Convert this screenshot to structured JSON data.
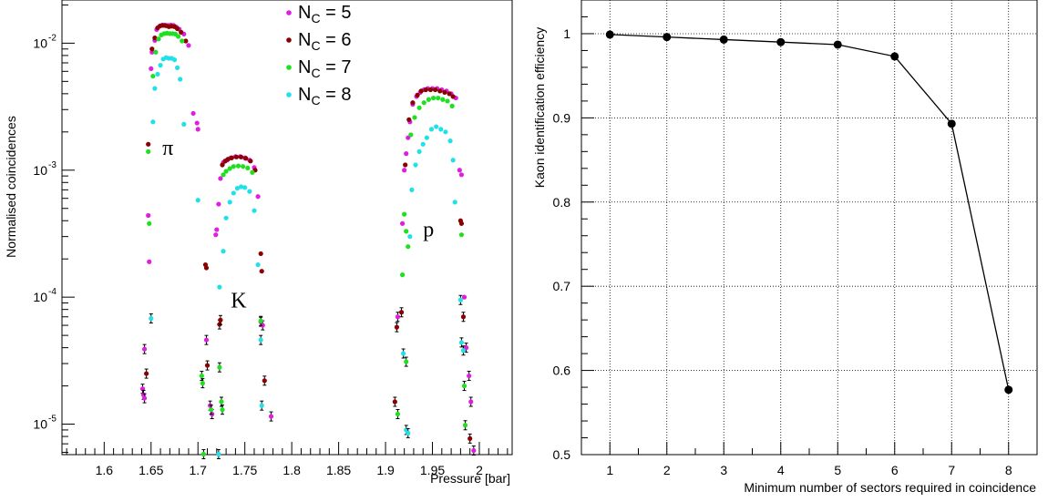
{
  "chart_data": [
    {
      "type": "scatter",
      "title": "",
      "xlabel": "Pressure [bar]",
      "ylabel": "Normalised coincidences",
      "xlim": [
        1.555,
        2.035
      ],
      "ylim_log10": [
        -5.24,
        -1.66
      ],
      "y_scale": "log",
      "grid": false,
      "legend_position": "top-center",
      "x_tick_labels": [
        "1.6",
        "1.65",
        "1.7",
        "1.75",
        "1.8",
        "1.85",
        "1.9",
        "1.95",
        "2"
      ],
      "x_ticks": [
        1.6,
        1.65,
        1.7,
        1.75,
        1.8,
        1.85,
        1.9,
        1.95,
        2.0
      ],
      "y_tick_bases": [
        "10",
        "10",
        "10",
        "10"
      ],
      "y_tick_exponents": [
        "-2",
        "-3",
        "-4",
        "-5"
      ],
      "y_ticks_log10": [
        -2,
        -3,
        -4,
        -5
      ],
      "legend": [
        {
          "label_main": "N",
          "label_sub": "C",
          "label_rest": " = 5",
          "color": "#e01ee0"
        },
        {
          "label_main": "N",
          "label_sub": "C",
          "label_rest": " = 6",
          "color": "#8b0000"
        },
        {
          "label_main": "N",
          "label_sub": "C",
          "label_rest": " = 7",
          "color": "#1ee01e"
        },
        {
          "label_main": "N",
          "label_sub": "C",
          "label_rest": " = 8",
          "color": "#22e0e8"
        }
      ],
      "annotations": [
        {
          "text": "π",
          "x": 1.662,
          "y_log10": -2.88
        },
        {
          "text": "K",
          "x": 1.735,
          "y_log10": -4.08
        },
        {
          "text": "p",
          "x": 1.94,
          "y_log10": -3.52
        }
      ],
      "series": [
        {
          "name": "N_C = 5",
          "color": "#e01ee0",
          "points": [
            [
              1.641,
              1.9e-05
            ],
            [
              1.642,
              1.7e-05
            ],
            [
              1.643,
              1.6e-05
            ],
            [
              1.643,
              3.9e-05
            ],
            [
              1.647,
              0.00044
            ],
            [
              1.648,
              0.00019
            ],
            [
              1.65,
              0.0063
            ],
            [
              1.651,
              0.0085
            ],
            [
              1.654,
              0.0105
            ],
            [
              1.656,
              0.0128
            ],
            [
              1.659,
              0.0136
            ],
            [
              1.662,
              0.0139
            ],
            [
              1.665,
              0.0139
            ],
            [
              1.668,
              0.0138
            ],
            [
              1.671,
              0.0139
            ],
            [
              1.674,
              0.0138
            ],
            [
              1.677,
              0.0134
            ],
            [
              1.68,
              0.0129
            ],
            [
              1.685,
              0.0118
            ],
            [
              1.69,
              0.0096
            ],
            [
              1.695,
              0.0028
            ],
            [
              1.699,
              0.00235
            ],
            [
              1.7,
              0.0021
            ],
            [
              1.709,
              4.6e-05
            ],
            [
              1.713,
              1.4e-05
            ],
            [
              1.715,
              1.2e-05
            ],
            [
              1.719,
              0.00031
            ],
            [
              1.72,
              0.00034
            ],
            [
              1.722,
              0.00054
            ],
            [
              1.724,
              0.00086
            ],
            [
              1.727,
              0.00115
            ],
            [
              1.731,
              0.0012
            ],
            [
              1.735,
              0.00125
            ],
            [
              1.74,
              0.00128
            ],
            [
              1.745,
              0.00128
            ],
            [
              1.75,
              0.00125
            ],
            [
              1.755,
              0.0012
            ],
            [
              1.76,
              0.00105
            ],
            [
              1.764,
              0.00062
            ],
            [
              1.767,
              6.4e-05
            ],
            [
              1.769,
              6e-05
            ],
            [
              1.778,
              1.15e-05
            ],
            [
              1.779,
              5.6e-06
            ],
            [
              1.913,
              7e-05
            ],
            [
              1.918,
              0.00038
            ],
            [
              1.92,
              0.001
            ],
            [
              1.922,
              0.00135
            ],
            [
              1.924,
              0.0018
            ],
            [
              1.926,
              0.0024
            ],
            [
              1.929,
              0.0033
            ],
            [
              1.933,
              0.0038
            ],
            [
              1.937,
              0.0041
            ],
            [
              1.941,
              0.0043
            ],
            [
              1.945,
              0.0044
            ],
            [
              1.95,
              0.0044
            ],
            [
              1.955,
              0.0044
            ],
            [
              1.96,
              0.0043
            ],
            [
              1.965,
              0.0042
            ],
            [
              1.97,
              0.004
            ],
            [
              1.975,
              0.0037
            ],
            [
              1.979,
              0.001
            ],
            [
              1.981,
              0.00092
            ],
            [
              1.984,
              0.0001
            ],
            [
              1.986,
              4e-05
            ],
            [
              1.989,
              2.4e-05
            ],
            [
              1.991,
              1.5e-05
            ],
            [
              1.994,
              6.2e-06
            ]
          ]
        },
        {
          "name": "N_C = 6",
          "color": "#8b0000",
          "points": [
            [
              1.645,
              2.5e-05
            ],
            [
              1.647,
              0.0016
            ],
            [
              1.651,
              0.009
            ],
            [
              1.654,
              0.011
            ],
            [
              1.657,
              0.0132
            ],
            [
              1.66,
              0.0137
            ],
            [
              1.663,
              0.0138
            ],
            [
              1.666,
              0.0137
            ],
            [
              1.669,
              0.0135
            ],
            [
              1.672,
              0.0136
            ],
            [
              1.675,
              0.0135
            ],
            [
              1.678,
              0.013
            ],
            [
              1.682,
              0.0122
            ],
            [
              1.687,
              0.0104
            ],
            [
              1.708,
              0.00018
            ],
            [
              1.709,
              0.00017
            ],
            [
              1.71,
              2.9e-05
            ],
            [
              1.723,
              6.1e-05
            ],
            [
              1.724,
              6.6e-05
            ],
            [
              1.726,
              0.0011
            ],
            [
              1.729,
              0.00118
            ],
            [
              1.732,
              0.00122
            ],
            [
              1.736,
              0.00125
            ],
            [
              1.741,
              0.00127
            ],
            [
              1.746,
              0.00127
            ],
            [
              1.751,
              0.00124
            ],
            [
              1.756,
              0.00118
            ],
            [
              1.761,
              0.001
            ],
            [
              1.767,
              0.00022
            ],
            [
              1.768,
              0.00016
            ],
            [
              1.771,
              2.2e-05
            ],
            [
              1.912,
              5.8e-05
            ],
            [
              1.91,
              1.5e-05
            ],
            [
              1.917,
              7.6e-05
            ],
            [
              1.921,
              0.0011
            ],
            [
              1.925,
              0.0025
            ],
            [
              1.929,
              0.0034
            ],
            [
              1.934,
              0.0039
            ],
            [
              1.938,
              0.0042
            ],
            [
              1.943,
              0.0043
            ],
            [
              1.948,
              0.0043
            ],
            [
              1.953,
              0.0043
            ],
            [
              1.958,
              0.0042
            ],
            [
              1.963,
              0.0041
            ],
            [
              1.968,
              0.004
            ],
            [
              1.972,
              0.0038
            ],
            [
              1.98,
              0.0004
            ],
            [
              1.981,
              0.00038
            ],
            [
              1.983,
              7e-05
            ],
            [
              1.99,
              7.7e-06
            ],
            [
              1.995,
              5.4e-06
            ]
          ]
        },
        {
          "name": "N_C = 7",
          "color": "#1ee01e",
          "points": [
            [
              1.647,
              0.0014
            ],
            [
              1.648,
              0.00038
            ],
            [
              1.652,
              0.0055
            ],
            [
              1.655,
              0.0085
            ],
            [
              1.658,
              0.0108
            ],
            [
              1.661,
              0.0116
            ],
            [
              1.664,
              0.0119
            ],
            [
              1.667,
              0.012
            ],
            [
              1.67,
              0.0119
            ],
            [
              1.673,
              0.0119
            ],
            [
              1.676,
              0.0118
            ],
            [
              1.679,
              0.0113
            ],
            [
              1.683,
              0.0104
            ],
            [
              1.704,
              2.4e-05
            ],
            [
              1.705,
              2.1e-05
            ],
            [
              1.706,
              5.8e-06
            ],
            [
              1.714,
              1.3e-05
            ],
            [
              1.723,
              2.8e-05
            ],
            [
              1.725,
              1.5e-05
            ],
            [
              1.726,
              1.3e-05
            ],
            [
              1.727,
              0.00092
            ],
            [
              1.73,
              0.00098
            ],
            [
              1.734,
              0.00103
            ],
            [
              1.738,
              0.00107
            ],
            [
              1.743,
              0.00108
            ],
            [
              1.748,
              0.00107
            ],
            [
              1.753,
              0.00104
            ],
            [
              1.758,
              0.00096
            ],
            [
              1.767,
              6.5e-05
            ],
            [
              1.913,
              1.2e-05
            ],
            [
              1.918,
              0.00015
            ],
            [
              1.92,
              0.00045
            ],
            [
              1.922,
              0.00033
            ],
            [
              1.924,
              0.00025
            ],
            [
              1.922,
              3.1e-05
            ],
            [
              1.927,
              0.0019
            ],
            [
              1.931,
              0.0026
            ],
            [
              1.936,
              0.0031
            ],
            [
              1.941,
              0.0034
            ],
            [
              1.946,
              0.0036
            ],
            [
              1.951,
              0.0037
            ],
            [
              1.956,
              0.0037
            ],
            [
              1.961,
              0.0036
            ],
            [
              1.966,
              0.0035
            ],
            [
              1.971,
              0.0032
            ],
            [
              1.981,
              0.00031
            ],
            [
              1.984,
              2e-05
            ],
            [
              1.985,
              9.8e-06
            ]
          ]
        },
        {
          "name": "N_C = 8",
          "color": "#22e0e8",
          "points": [
            [
              1.65,
              6.8e-05
            ],
            [
              1.652,
              0.0024
            ],
            [
              1.654,
              0.0044
            ],
            [
              1.657,
              0.0057
            ],
            [
              1.66,
              0.0067
            ],
            [
              1.663,
              0.0075
            ],
            [
              1.666,
              0.0077
            ],
            [
              1.669,
              0.0076
            ],
            [
              1.672,
              0.0076
            ],
            [
              1.675,
              0.0074
            ],
            [
              1.678,
              0.0064
            ],
            [
              1.681,
              0.0052
            ],
            [
              1.685,
              0.0023
            ],
            [
              1.7,
              0.00058
            ],
            [
              1.722,
              5.8e-06
            ],
            [
              1.723,
              0.00012
            ],
            [
              1.727,
              0.00023
            ],
            [
              1.73,
              0.00042
            ],
            [
              1.734,
              0.00056
            ],
            [
              1.738,
              0.00066
            ],
            [
              1.742,
              0.00072
            ],
            [
              1.746,
              0.00074
            ],
            [
              1.75,
              0.00073
            ],
            [
              1.755,
              0.00068
            ],
            [
              1.76,
              0.00048
            ],
            [
              1.764,
              0.00018
            ],
            [
              1.767,
              4.6e-05
            ],
            [
              1.768,
              1.4e-05
            ],
            [
              1.919,
              3.6e-05
            ],
            [
              1.922,
              9e-06
            ],
            [
              1.924,
              8.5e-06
            ],
            [
              1.926,
              0.0003
            ],
            [
              1.928,
              0.0007
            ],
            [
              1.932,
              0.0011
            ],
            [
              1.936,
              0.0014
            ],
            [
              1.94,
              0.0016
            ],
            [
              1.944,
              0.0018
            ],
            [
              1.949,
              0.0021
            ],
            [
              1.954,
              0.0022
            ],
            [
              1.959,
              0.0021
            ],
            [
              1.964,
              0.002
            ],
            [
              1.969,
              0.0017
            ],
            [
              1.972,
              0.0012
            ],
            [
              1.974,
              0.00056
            ],
            [
              1.98,
              9.5e-05
            ],
            [
              1.981,
              4.4e-05
            ],
            [
              1.983,
              3.8e-05
            ]
          ]
        }
      ]
    },
    {
      "type": "line",
      "title": "",
      "xlabel": "Minimum number of sectors required in coincidence",
      "ylabel": "Kaon identification efficiency",
      "xlim": [
        0.5,
        8.5
      ],
      "ylim": [
        0.5,
        1.04
      ],
      "grid": true,
      "x_tick_labels": [
        "1",
        "2",
        "3",
        "4",
        "5",
        "6",
        "7",
        "8"
      ],
      "y_tick_labels": [
        "0.5",
        "0.6",
        "0.7",
        "0.8",
        "0.9",
        "1"
      ],
      "y_ticks": [
        0.5,
        0.6,
        0.7,
        0.8,
        0.9,
        1.0
      ],
      "x": [
        1,
        2,
        3,
        4,
        5,
        6,
        7,
        8
      ],
      "series": [
        {
          "values": [
            0.999,
            0.996,
            0.993,
            0.99,
            0.987,
            0.973,
            0.893,
            0.577
          ],
          "color": "#000000"
        }
      ]
    }
  ]
}
